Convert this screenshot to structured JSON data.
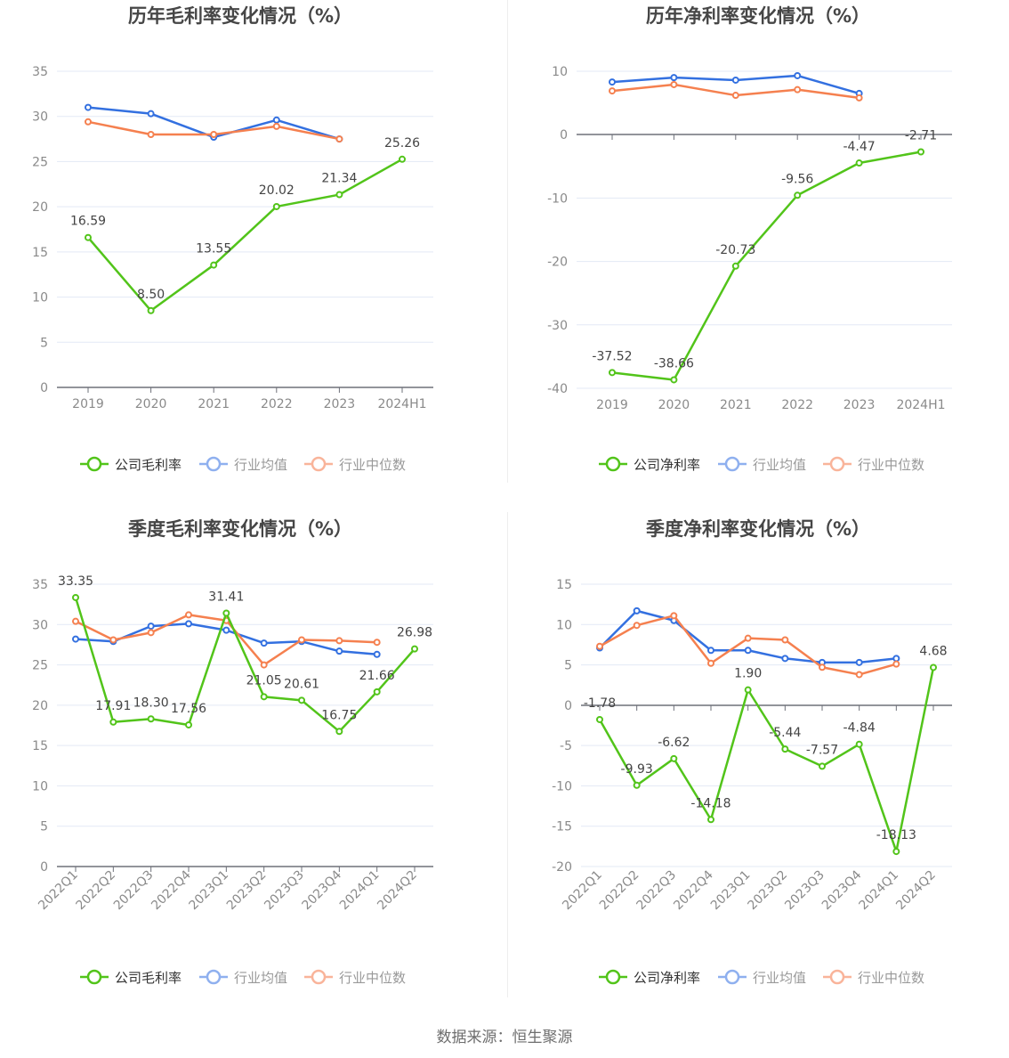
{
  "colors": {
    "company": "#52c41a",
    "avg": "#3370e0",
    "median": "#f5804f",
    "avg_legend": "#8fb0ef",
    "median_legend": "#f9b49a",
    "grid": "#e3e9f5",
    "axis": "#6e7079"
  },
  "legend_common": {
    "avg": "行业均值",
    "median": "行业中位数"
  },
  "source": "数据来源：恒生聚源",
  "chart_data": [
    {
      "type": "line",
      "title": "历年毛利率变化情况（%）",
      "categories": [
        "2019",
        "2020",
        "2021",
        "2022",
        "2023",
        "2024H1"
      ],
      "yticks": [
        "35",
        "30",
        "25",
        "20",
        "15",
        "10",
        "5",
        "0"
      ],
      "ylim": [
        0,
        35
      ],
      "legend": [
        "公司毛利率",
        "行业均值",
        "行业中位数"
      ],
      "legend_position": "bottom",
      "series": [
        {
          "name": "公司毛利率",
          "values": [
            16.59,
            8.5,
            13.55,
            20.02,
            21.34,
            25.26
          ],
          "labels": [
            "16.59",
            "8.50",
            "13.55",
            "20.02",
            "21.34",
            "25.26"
          ]
        },
        {
          "name": "行业均值",
          "values": [
            31.0,
            30.3,
            27.7,
            29.6,
            27.5,
            null
          ]
        },
        {
          "name": "行业中位数",
          "values": [
            29.4,
            28.0,
            28.0,
            28.9,
            27.5,
            null
          ]
        }
      ]
    },
    {
      "type": "line",
      "title": "历年净利率变化情况（%）",
      "categories": [
        "2019",
        "2020",
        "2021",
        "2022",
        "2023",
        "2024H1"
      ],
      "yticks": [
        "10",
        "0",
        "-10",
        "-20",
        "-30",
        "-40"
      ],
      "ylim": [
        -40,
        10
      ],
      "legend": [
        "公司净利率",
        "行业均值",
        "行业中位数"
      ],
      "legend_position": "bottom",
      "series": [
        {
          "name": "公司净利率",
          "values": [
            -37.52,
            -38.66,
            -20.73,
            -9.56,
            -4.47,
            -2.71
          ],
          "labels": [
            "-37.52",
            "-38.66",
            "-20.73",
            "-9.56",
            "-4.47",
            "-2.71"
          ]
        },
        {
          "name": "行业均值",
          "values": [
            8.3,
            9.0,
            8.6,
            9.3,
            6.5,
            null
          ]
        },
        {
          "name": "行业中位数",
          "values": [
            6.9,
            7.9,
            6.2,
            7.1,
            5.8,
            null
          ]
        }
      ]
    },
    {
      "type": "line",
      "title": "季度毛利率变化情况（%）",
      "categories": [
        "2022Q1",
        "2022Q2",
        "2022Q3",
        "2022Q4",
        "2023Q1",
        "2023Q2",
        "2023Q3",
        "2023Q4",
        "2024Q1",
        "2024Q2"
      ],
      "yticks": [
        "35",
        "30",
        "25",
        "20",
        "15",
        "10",
        "5",
        "0"
      ],
      "ylim": [
        0,
        35
      ],
      "legend": [
        "公司毛利率",
        "行业均值",
        "行业中位数"
      ],
      "legend_position": "bottom",
      "series": [
        {
          "name": "公司毛利率",
          "values": [
            33.35,
            17.91,
            18.3,
            17.56,
            31.41,
            21.05,
            20.61,
            16.75,
            21.66,
            26.98
          ],
          "labels": [
            "33.35",
            "17.91",
            "18.30",
            "17.56",
            "31.41",
            "21.05",
            "20.61",
            "16.75",
            "21.66",
            "26.98"
          ]
        },
        {
          "name": "行业均值",
          "values": [
            28.2,
            27.9,
            29.8,
            30.1,
            29.3,
            27.7,
            27.9,
            26.7,
            26.3,
            null
          ]
        },
        {
          "name": "行业中位数",
          "values": [
            30.4,
            28.1,
            29.0,
            31.2,
            30.5,
            25.0,
            28.1,
            28.0,
            27.8,
            null
          ]
        }
      ]
    },
    {
      "type": "line",
      "title": "季度净利率变化情况（%）",
      "categories": [
        "2022Q1",
        "2022Q2",
        "2022Q3",
        "2022Q4",
        "2023Q1",
        "2023Q2",
        "2023Q3",
        "2023Q4",
        "2024Q1",
        "2024Q2"
      ],
      "yticks": [
        "15",
        "10",
        "5",
        "0",
        "-5",
        "-10",
        "-15",
        "-20"
      ],
      "ylim": [
        -20,
        15
      ],
      "legend": [
        "公司净利率",
        "行业均值",
        "行业中位数"
      ],
      "legend_position": "bottom",
      "series": [
        {
          "name": "公司净利率",
          "values": [
            -1.78,
            -9.93,
            -6.62,
            -14.18,
            1.9,
            -5.44,
            -7.57,
            -4.84,
            -18.13,
            4.68
          ],
          "labels": [
            "-1.78",
            "-9.93",
            "-6.62",
            "-14.18",
            "1.90",
            "-5.44",
            "-7.57",
            "-4.84",
            "-18.13",
            "4.68"
          ]
        },
        {
          "name": "行业均值",
          "values": [
            7.1,
            11.7,
            10.5,
            6.8,
            6.8,
            5.8,
            5.3,
            5.3,
            5.8,
            null
          ]
        },
        {
          "name": "行业中位数",
          "values": [
            7.3,
            9.9,
            11.1,
            5.2,
            8.3,
            8.1,
            4.7,
            3.8,
            5.1,
            null
          ]
        }
      ]
    }
  ]
}
